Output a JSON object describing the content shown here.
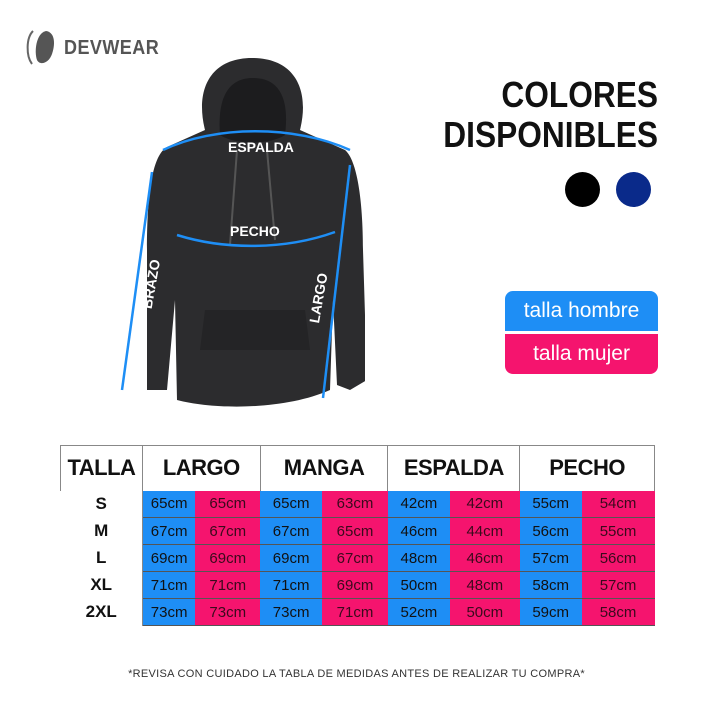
{
  "brand": {
    "name": "DEVWEAR"
  },
  "colors_title": {
    "line1": "COLORES",
    "line2": "DISPONIBLES"
  },
  "available_colors": [
    "#000000",
    "#0a2a8a"
  ],
  "legend": {
    "men": "talla hombre",
    "women": "talla mujer",
    "men_color": "#1e8ef5",
    "women_color": "#f5146e"
  },
  "hoodie_labels": {
    "espalda": "ESPALDA",
    "pecho": "PECHO",
    "brazo": "BRAZO",
    "largo": "LARGO"
  },
  "table": {
    "headers": [
      "TALLA",
      "LARGO",
      "MANGA",
      "ESPALDA",
      "PECHO"
    ],
    "rows": [
      {
        "size": "S",
        "cells": [
          "65cm",
          "65cm",
          "65cm",
          "63cm",
          "42cm",
          "42cm",
          "55cm",
          "54cm"
        ]
      },
      {
        "size": "M",
        "cells": [
          "67cm",
          "67cm",
          "67cm",
          "65cm",
          "46cm",
          "44cm",
          "56cm",
          "55cm"
        ]
      },
      {
        "size": "L",
        "cells": [
          "69cm",
          "69cm",
          "69cm",
          "67cm",
          "48cm",
          "46cm",
          "57cm",
          "56cm"
        ]
      },
      {
        "size": "XL",
        "cells": [
          "71cm",
          "71cm",
          "71cm",
          "69cm",
          "50cm",
          "48cm",
          "58cm",
          "57cm"
        ]
      },
      {
        "size": "2XL",
        "cells": [
          "73cm",
          "73cm",
          "73cm",
          "71cm",
          "52cm",
          "50cm",
          "59cm",
          "58cm"
        ]
      }
    ]
  },
  "note": "*REVISA CON CUIDADO LA TABLA DE MEDIDAS ANTES DE REALIZAR TU COMPRA*"
}
